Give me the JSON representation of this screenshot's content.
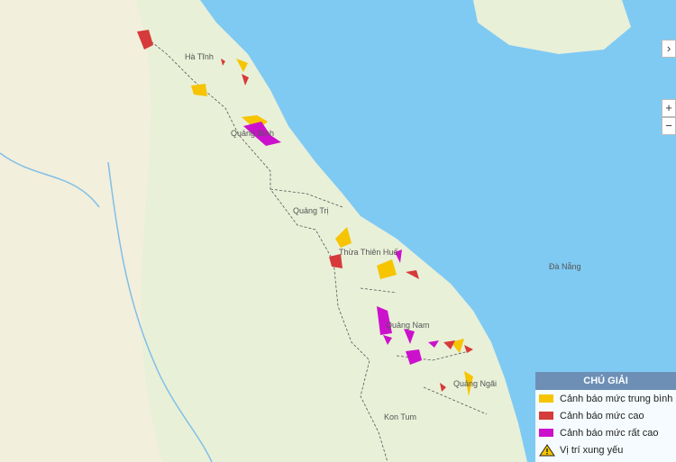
{
  "map": {
    "places": [
      {
        "label": "Hà Tĩnh"
      },
      {
        "label": "Quảng Bình"
      },
      {
        "label": "Quảng Trị"
      },
      {
        "label": "Thừa Thiên Huế"
      },
      {
        "label": "Đà Nẵng"
      },
      {
        "label": "Quảng Nam"
      },
      {
        "label": "Quảng Ngãi"
      },
      {
        "label": "Kon Tum"
      }
    ],
    "controls": {
      "zoom_in": "+",
      "zoom_out": "−",
      "collapse": "›"
    }
  },
  "legend": {
    "title": "CHÚ GIẢI",
    "items": [
      {
        "label": "Cảnh báo mức trung bình",
        "color": "#f6c400"
      },
      {
        "label": "Cảnh báo mức cao",
        "color": "#d63a3a"
      },
      {
        "label": "Cảnh báo mức rất cao",
        "color": "#cc11cc"
      },
      {
        "label": "Vị trí xung yếu"
      }
    ]
  }
}
